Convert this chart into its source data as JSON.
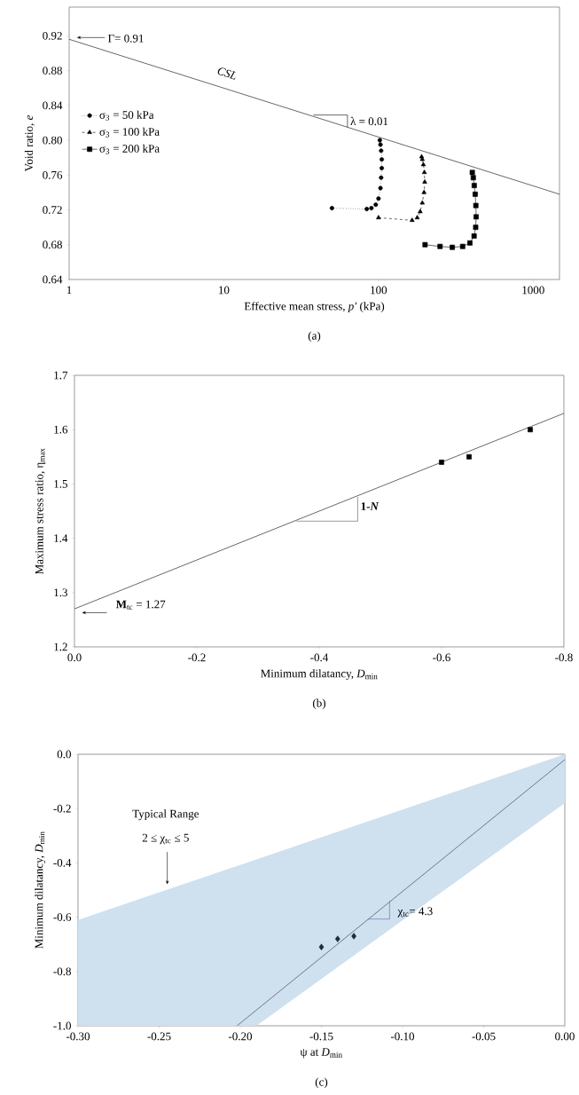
{
  "chart_data": [
    {
      "type": "line",
      "title": "(a)",
      "xlabel": "Effective mean stress, *p′* (kPa)",
      "ylabel": "Void ratio, *e*",
      "log": "x",
      "legend": "left",
      "xlim": [
        1,
        1480
      ],
      "ylim": [
        0.64,
        0.953
      ],
      "xticks": [
        1,
        10,
        100,
        1000
      ],
      "yticks": [
        {
          "value": 0.64,
          "label": "0.64"
        },
        {
          "value": 0.68,
          "label": "0.68"
        },
        {
          "value": 0.72,
          "label": "0.72"
        },
        {
          "value": 0.76,
          "label": "0.76"
        },
        {
          "value": 0.8,
          "label": "0.80"
        },
        {
          "value": 0.84,
          "label": "0.84"
        },
        {
          "value": 0.88,
          "label": "0.88"
        },
        {
          "value": 0.92,
          "label": "0.92"
        }
      ],
      "annotations": [
        "Γ= 0.91",
        {
          "text": "λ = 0.01",
          "x": 63,
          "y": 0.815
        }
      ],
      "series": [
        {
          "name": "CSL",
          "type": "line",
          "marker": "none",
          "line_style": "solid",
          "color": "#000000",
          "x": [
            1,
            1480
          ],
          "values": [
            0.916,
            0.738
          ]
        },
        {
          "name": "σ$_{3}$ = 50 kPa",
          "marker": "circle",
          "line_style": "dotted",
          "color": "#000000",
          "x": [
            50,
            84,
            90,
            96,
            100,
            103,
            104,
            105,
            105,
            104,
            103,
            102
          ],
          "values": [
            0.722,
            0.721,
            0.722,
            0.726,
            0.733,
            0.745,
            0.757,
            0.768,
            0.778,
            0.788,
            0.795,
            0.8
          ]
        },
        {
          "name": "σ$_{3}$ = 100 kPa",
          "marker": "triangle",
          "line_style": "dashed",
          "color": "#000000",
          "x": [
            100,
            165,
            178,
            186,
            192,
            197,
            199,
            198,
            195,
            192,
            190
          ],
          "values": [
            0.711,
            0.708,
            0.711,
            0.718,
            0.728,
            0.74,
            0.752,
            0.763,
            0.772,
            0.778,
            0.781
          ]
        },
        {
          "name": "σ$_{3}$ = 200 kPa",
          "marker": "square",
          "line_style": "solid",
          "color": "#000000",
          "x": [
            200,
            250,
            300,
            350,
            390,
            415,
            425,
            428,
            426,
            422,
            416,
            410,
            404
          ],
          "values": [
            0.68,
            0.678,
            0.677,
            0.678,
            0.682,
            0.69,
            0.7,
            0.712,
            0.725,
            0.738,
            0.748,
            0.757,
            0.763
          ]
        }
      ]
    },
    {
      "type": "scatter",
      "title": "(b)",
      "xlabel": "Minimum dilatancy, *D*$_{min}$",
      "ylabel": "Maximum stress ratio, η$_{max}$",
      "xlim": [
        0,
        -0.8
      ],
      "ylim": [
        1.2,
        1.7
      ],
      "xticks": [
        {
          "value": 0,
          "label": "0.0"
        },
        {
          "value": -0.2,
          "label": "-0.2"
        },
        {
          "value": -0.4,
          "label": "-0.4"
        },
        {
          "value": -0.6,
          "label": "-0.6"
        },
        {
          "value": -0.8,
          "label": "-0.8"
        }
      ],
      "yticks": [
        {
          "value": 1.2,
          "label": "1.2"
        },
        {
          "value": 1.3,
          "label": "1.3"
        },
        {
          "value": 1.4,
          "label": "1.4"
        },
        {
          "value": 1.5,
          "label": "1.5"
        },
        {
          "value": 1.6,
          "label": "1.6"
        },
        {
          "value": 1.7,
          "label": "1.7"
        }
      ],
      "annotations": [
        "**M**$_{tc}$ = 1.27",
        {
          "text": "1-*N*",
          "x": -0.463,
          "y": 1.476
        }
      ],
      "series": [
        {
          "type": "line",
          "marker": "none",
          "line_style": "solid",
          "color": "#000000",
          "x": [
            0,
            -0.8
          ],
          "values": [
            1.27,
            1.63
          ]
        },
        {
          "type": "scatter",
          "marker": "square",
          "color": "#000000",
          "x": [
            -0.6,
            -0.645,
            -0.745
          ],
          "values": [
            1.54,
            1.55,
            1.6
          ]
        }
      ]
    },
    {
      "type": "scatter",
      "title": "(c)",
      "xlabel": "ψ at *D*$_{min}$",
      "ylabel": "Minimum dilatancy, *D*$_{min}$",
      "xlim": [
        -0.3,
        0
      ],
      "ylim": [
        -1.0,
        0.0
      ],
      "xticks": [
        {
          "value": -0.3,
          "label": "-0.30"
        },
        {
          "value": -0.25,
          "label": "-0.25"
        },
        {
          "value": -0.2,
          "label": "-0.20"
        },
        {
          "value": -0.15,
          "label": "-0.15"
        },
        {
          "value": -0.1,
          "label": "-0.10"
        },
        {
          "value": -0.05,
          "label": "-0.05"
        },
        {
          "value": 0,
          "label": "0.00"
        }
      ],
      "yticks": [
        {
          "value": -1.0,
          "label": "-1.0"
        },
        {
          "value": -0.8,
          "label": "-0.8"
        },
        {
          "value": -0.6,
          "label": "-0.6"
        },
        {
          "value": -0.4,
          "label": "-0.4"
        },
        {
          "value": -0.2,
          "label": "-0.2"
        },
        {
          "value": 0,
          "label": "0.0"
        }
      ],
      "annotations": [
        "Typical Range",
        "2 ≤ χ$_{tc}$ ≤ 5",
        {
          "text": "χ$_{tc}$= 4.3",
          "x": -0.108,
          "y": -0.54
        }
      ],
      "series": [
        {
          "type": "line",
          "color": "#cfe0ef",
          "x": [
            -0.3,
            -0.19,
            0
          ],
          "values": [
            null,
            null,
            null
          ],
          "lower": [
            -1.0,
            -1.0,
            -0.18
          ],
          "upper": [
            -0.61,
            -0.387,
            0.0
          ]
        },
        {
          "type": "line",
          "marker": "none",
          "line_style": "solid",
          "color": "#2b3441",
          "x": [
            -0.202,
            0
          ],
          "values": [
            -1.0,
            -0.02
          ]
        },
        {
          "type": "scatter",
          "marker": "diamond",
          "color": "#1f2a3c",
          "x": [
            -0.15,
            -0.14,
            -0.13
          ],
          "values": [
            -0.71,
            -0.68,
            -0.67
          ]
        }
      ]
    }
  ]
}
